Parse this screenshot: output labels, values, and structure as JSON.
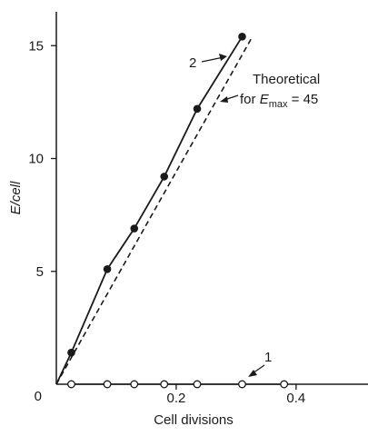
{
  "chart_data": {
    "type": "line",
    "xlabel": "Cell divisions",
    "ylabel": "E/cell",
    "xlim": [
      0,
      0.52
    ],
    "ylim": [
      0,
      16.5
    ],
    "x_ticks": [
      0,
      0.2,
      0.4
    ],
    "x_tick_labels": [
      "0",
      "0.2",
      "0.4"
    ],
    "y_ticks": [
      0,
      5,
      10,
      15
    ],
    "y_tick_labels": [
      "0",
      "5",
      "10",
      "15"
    ],
    "series": [
      {
        "name": "2",
        "marker": "filled-circle",
        "line": "solid",
        "x": [
          0.025,
          0.085,
          0.13,
          0.18,
          0.235,
          0.31
        ],
        "y": [
          1.4,
          5.1,
          6.9,
          9.2,
          12.2,
          15.4
        ]
      },
      {
        "name": "1",
        "marker": "open-circle",
        "line": "solid",
        "x": [
          0.025,
          0.085,
          0.13,
          0.18,
          0.235,
          0.31,
          0.38
        ],
        "y": [
          0,
          0,
          0,
          0,
          0,
          0,
          0
        ]
      },
      {
        "name": "Theoretical",
        "marker": "none",
        "line": "dashed",
        "x": [
          0,
          0.325
        ],
        "y": [
          0,
          15.3
        ]
      }
    ],
    "annotations": {
      "theoretical_line1": "Theoretical",
      "theoretical_line2_prefix": "for ",
      "theoretical_E": "E",
      "theoretical_sub": "max",
      "theoretical_suffix": " = 45"
    }
  }
}
